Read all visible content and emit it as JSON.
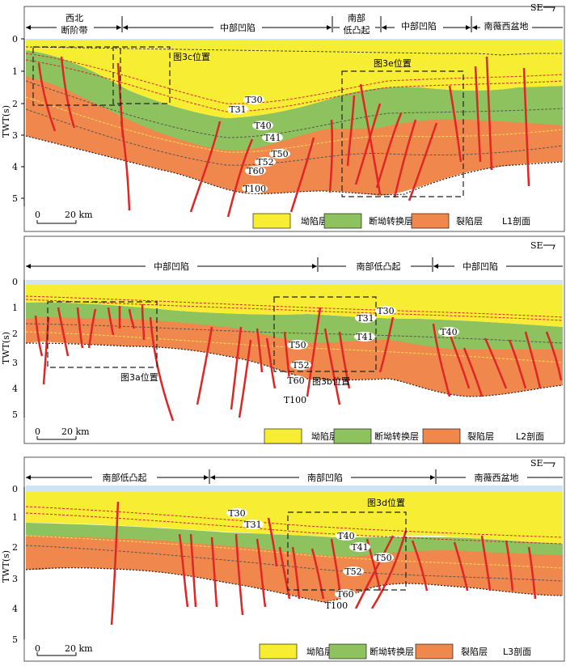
{
  "panels": [
    {
      "id": "L1",
      "profile_label": "L1剖面",
      "direction": "SE",
      "regions": [
        {
          "text": "西北",
          "text2": "断阶带"
        },
        {
          "text": "中部凹陷"
        },
        {
          "text": "南部",
          "text2": "低凸起"
        },
        {
          "text": "中部凹陷"
        },
        {
          "text": "南薇西盆地"
        }
      ],
      "horizons": [
        "T30",
        "T31",
        "T40",
        "T41",
        "T50",
        "T52",
        "T60",
        "T100"
      ],
      "boxes": [
        "图3c位置",
        "图3e位置"
      ],
      "yaxis": {
        "label": "TWT(s)",
        "ticks": [
          "0",
          "1",
          "2",
          "3",
          "4",
          "5"
        ]
      },
      "scale": {
        "start": "0",
        "end": "20 km"
      },
      "legend": [
        "坳陷层",
        "断坳转换层",
        "裂陷层"
      ]
    },
    {
      "id": "L2",
      "profile_label": "L2剖面",
      "direction": "SE",
      "regions": [
        {
          "text": "中部凹陷"
        },
        {
          "text": "南部低凸起"
        },
        {
          "text": "中部凹陷"
        }
      ],
      "horizons": [
        "T30",
        "T31",
        "T40",
        "T41",
        "T50",
        "T52",
        "T60",
        "T100"
      ],
      "boxes": [
        "图3a位置",
        "图3b位置"
      ],
      "yaxis": {
        "label": "TWT(s)",
        "ticks": [
          "0",
          "1",
          "2",
          "3",
          "4",
          "5"
        ]
      },
      "scale": {
        "start": "0",
        "end": "20 km"
      },
      "legend": [
        "坳陷层",
        "断坳转换层",
        "裂陷层"
      ]
    },
    {
      "id": "L3",
      "profile_label": "L3剖面",
      "direction": "SE",
      "regions": [
        {
          "text": "南部低凸起"
        },
        {
          "text": "南部凹陷"
        },
        {
          "text": "南薇西盆地"
        }
      ],
      "horizons": [
        "T30",
        "T31",
        "T40",
        "T41",
        "T50",
        "T52",
        "T60",
        "T100"
      ],
      "boxes": [
        "图3d位置"
      ],
      "yaxis": {
        "label": "TWT(s)",
        "ticks": [
          "0",
          "1",
          "2",
          "3",
          "4",
          "5"
        ]
      },
      "scale": {
        "start": "0",
        "end": "20 km"
      },
      "legend": [
        "坳陷层",
        "断坳转换层",
        "裂陷层"
      ]
    }
  ],
  "colors": {
    "depression_layer": "#f7ee34",
    "transition_layer": "#8dc25e",
    "rift_layer": "#f0884e",
    "fault": "#e02525",
    "sea": "#cfe3f3"
  }
}
